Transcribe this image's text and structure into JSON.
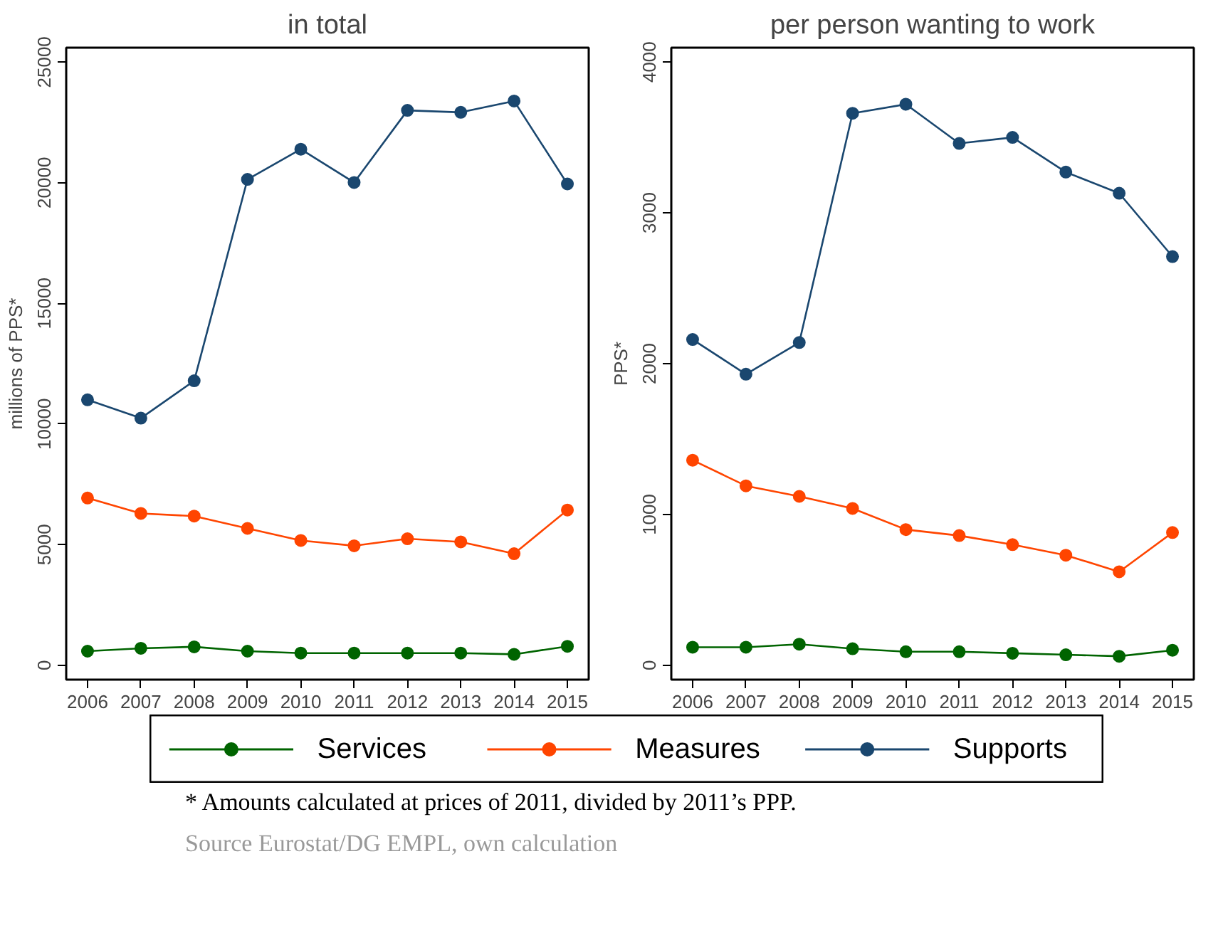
{
  "chart_data": [
    {
      "type": "line",
      "title": "in total",
      "ylabel": "millions of PPS*",
      "categories": [
        "2006",
        "2007",
        "2008",
        "2009",
        "2010",
        "2011",
        "2012",
        "2013",
        "2014",
        "2015"
      ],
      "ylim": [
        -600,
        25600
      ],
      "yticks": [
        0,
        5000,
        10000,
        15000,
        20000,
        25000
      ],
      "grid": false,
      "marker": "circle",
      "legend": "bottom",
      "series": [
        {
          "name": "Services",
          "color": "#006400",
          "values": [
            580,
            700,
            760,
            580,
            500,
            500,
            500,
            500,
            450,
            780
          ]
        },
        {
          "name": "Measures",
          "color": "#ff4500",
          "values": [
            6930,
            6290,
            6180,
            5670,
            5170,
            4950,
            5240,
            5110,
            4620,
            6430
          ]
        },
        {
          "name": "Supports",
          "color": "#1a476f",
          "values": [
            11000,
            10240,
            11790,
            20140,
            21390,
            20010,
            23000,
            22920,
            23390,
            19950
          ]
        }
      ]
    },
    {
      "type": "line",
      "title": "per person wanting to work",
      "ylabel": "PPS*",
      "categories": [
        "2006",
        "2007",
        "2008",
        "2009",
        "2010",
        "2011",
        "2012",
        "2013",
        "2014",
        "2015"
      ],
      "ylim": [
        -95,
        4095
      ],
      "yticks": [
        0,
        1000,
        2000,
        3000,
        4000
      ],
      "grid": false,
      "marker": "circle",
      "annotations": [
        "*  Amounts calculated at prices of 2011, divided by 2011’s PPP.",
        "Source Eurostat/DG EMPL, own calculation"
      ],
      "series": [
        {
          "color": "#006400",
          "values": [
            120,
            120,
            140,
            110,
            90,
            90,
            80,
            70,
            60,
            100
          ]
        },
        {
          "color": "#ff4500",
          "values": [
            1360,
            1190,
            1120,
            1040,
            900,
            860,
            800,
            730,
            620,
            880
          ]
        },
        {
          "color": "#1a476f",
          "values": [
            2160,
            1930,
            2140,
            3660,
            3720,
            3460,
            3500,
            3270,
            3130,
            2710
          ]
        }
      ]
    }
  ]
}
